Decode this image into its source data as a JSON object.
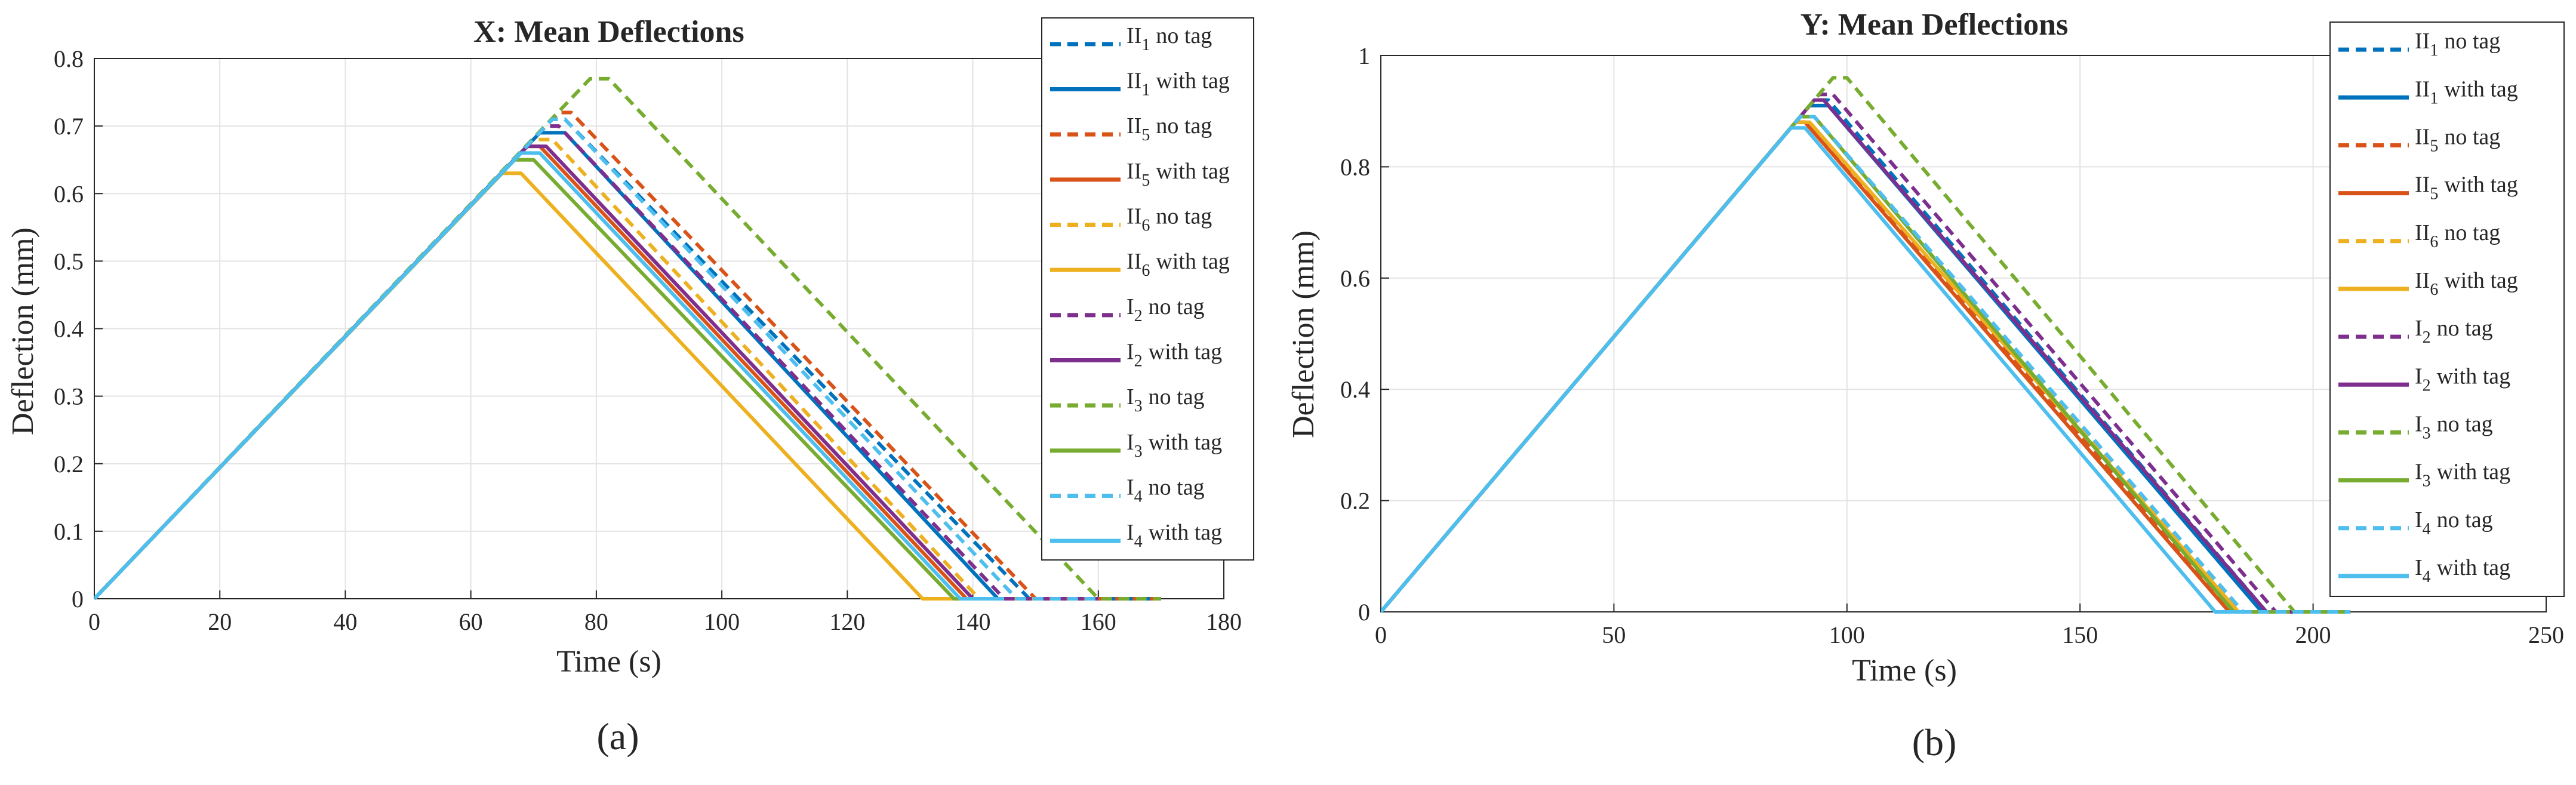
{
  "chart_data": [
    {
      "type": "line",
      "panel_label": "(a)",
      "title": "X: Mean Deflections",
      "xlabel": "Time (s)",
      "ylabel": "Deflection (mm)",
      "xlim": [
        0,
        180
      ],
      "ylim": [
        0,
        0.8
      ],
      "xticks": [
        "0",
        "20",
        "40",
        "60",
        "80",
        "100",
        "120",
        "140",
        "160",
        "180"
      ],
      "yticks": [
        "0",
        "0.1",
        "0.2",
        "0.3",
        "0.4",
        "0.5",
        "0.6",
        "0.7",
        "0.8"
      ],
      "grid": true,
      "legend_position": "top-right",
      "series": [
        {
          "name": "II1 no tag",
          "sym": "II",
          "sub": "1",
          "suffix": "no tag",
          "color": "#0072BD",
          "dashed": true,
          "x": [
            0,
            73,
            75,
            149,
            170
          ],
          "y": [
            0,
            0.71,
            0.71,
            0,
            0
          ]
        },
        {
          "name": "II1 with tag",
          "sym": "II",
          "sub": "1",
          "suffix": "with tag",
          "color": "#0072BD",
          "dashed": false,
          "x": [
            0,
            71,
            75,
            144,
            149
          ],
          "y": [
            0,
            0.69,
            0.69,
            0,
            0
          ]
        },
        {
          "name": "II5 no tag",
          "sym": "II",
          "sub": "5",
          "suffix": "no tag",
          "color": "#D95319",
          "dashed": true,
          "x": [
            0,
            74,
            76,
            150,
            170
          ],
          "y": [
            0,
            0.72,
            0.72,
            0,
            0
          ]
        },
        {
          "name": "II5 with tag",
          "sym": "II",
          "sub": "5",
          "suffix": "with tag",
          "color": "#D95319",
          "dashed": false,
          "x": [
            0,
            69,
            71,
            139,
            146
          ],
          "y": [
            0,
            0.67,
            0.67,
            0,
            0
          ]
        },
        {
          "name": "II6 no tag",
          "sym": "II",
          "sub": "6",
          "suffix": "no tag",
          "color": "#EDB120",
          "dashed": true,
          "x": [
            0,
            70,
            73,
            141,
            150
          ],
          "y": [
            0,
            0.68,
            0.68,
            0,
            0
          ]
        },
        {
          "name": "II6 with tag",
          "sym": "II",
          "sub": "6",
          "suffix": "with tag",
          "color": "#EDB120",
          "dashed": false,
          "x": [
            0,
            65,
            68,
            132,
            137
          ],
          "y": [
            0,
            0.63,
            0.63,
            0,
            0
          ]
        },
        {
          "name": "I2 no tag",
          "sym": "I",
          "sub": "2",
          "suffix": "no tag",
          "color": "#7E2F8E",
          "dashed": true,
          "x": [
            0,
            72,
            74,
            145,
            160
          ],
          "y": [
            0,
            0.7,
            0.7,
            0,
            0
          ]
        },
        {
          "name": "I2 with tag",
          "sym": "I",
          "sub": "2",
          "suffix": "with tag",
          "color": "#7E2F8E",
          "dashed": false,
          "x": [
            0,
            69,
            72,
            140,
            146
          ],
          "y": [
            0,
            0.67,
            0.67,
            0,
            0
          ]
        },
        {
          "name": "I3 no tag",
          "sym": "I",
          "sub": "3",
          "suffix": "no tag",
          "color": "#77AC30",
          "dashed": true,
          "x": [
            0,
            79,
            82,
            160,
            170
          ],
          "y": [
            0,
            0.77,
            0.77,
            0,
            0
          ]
        },
        {
          "name": "I3 with tag",
          "sym": "I",
          "sub": "3",
          "suffix": "with tag",
          "color": "#77AC30",
          "dashed": false,
          "x": [
            0,
            67,
            70,
            137,
            144
          ],
          "y": [
            0,
            0.65,
            0.65,
            0,
            0
          ]
        },
        {
          "name": "I4 no tag",
          "sym": "I",
          "sub": "4",
          "suffix": "no tag",
          "color": "#4DBEEE",
          "dashed": true,
          "x": [
            0,
            73,
            75,
            147,
            160
          ],
          "y": [
            0,
            0.71,
            0.71,
            0,
            0
          ]
        },
        {
          "name": "I4 with tag",
          "sym": "I",
          "sub": "4",
          "suffix": "with tag",
          "color": "#4DBEEE",
          "dashed": false,
          "x": [
            0,
            68,
            71,
            138,
            145
          ],
          "y": [
            0,
            0.66,
            0.66,
            0,
            0
          ]
        }
      ]
    },
    {
      "type": "line",
      "panel_label": "(b)",
      "title": "Y: Mean Deflections",
      "xlabel": "Time (s)",
      "ylabel": "Deflection (mm)",
      "xlim": [
        0,
        250
      ],
      "ylim": [
        0,
        1
      ],
      "xticks": [
        "0",
        "50",
        "100",
        "150",
        "200",
        "250"
      ],
      "yticks": [
        "0",
        "0.2",
        "0.4",
        "0.6",
        "0.8",
        "1"
      ],
      "grid": true,
      "legend_position": "top-right",
      "series": [
        {
          "name": "II1 no tag",
          "sym": "II",
          "sub": "1",
          "suffix": "no tag",
          "color": "#0072BD",
          "dashed": true,
          "x": [
            0,
            93,
            96,
            190,
            208
          ],
          "y": [
            0,
            0.92,
            0.92,
            0,
            0
          ]
        },
        {
          "name": "II1 with tag",
          "sym": "II",
          "sub": "1",
          "suffix": "with tag",
          "color": "#0072BD",
          "dashed": false,
          "x": [
            0,
            92,
            96,
            189,
            200
          ],
          "y": [
            0,
            0.91,
            0.91,
            0,
            0
          ]
        },
        {
          "name": "II5 no tag",
          "sym": "II",
          "sub": "5",
          "suffix": "no tag",
          "color": "#D95319",
          "dashed": true,
          "x": [
            0,
            89,
            92,
            183,
            208
          ],
          "y": [
            0,
            0.88,
            0.88,
            0,
            0
          ]
        },
        {
          "name": "II5 with tag",
          "sym": "II",
          "sub": "5",
          "suffix": "with tag",
          "color": "#D95319",
          "dashed": false,
          "x": [
            0,
            89,
            91,
            182,
            190
          ],
          "y": [
            0,
            0.88,
            0.88,
            0,
            0
          ]
        },
        {
          "name": "II6 no tag",
          "sym": "II",
          "sub": "6",
          "suffix": "no tag",
          "color": "#EDB120",
          "dashed": true,
          "x": [
            0,
            90,
            93,
            184,
            208
          ],
          "y": [
            0,
            0.89,
            0.89,
            0,
            0
          ]
        },
        {
          "name": "II6 with tag",
          "sym": "II",
          "sub": "6",
          "suffix": "with tag",
          "color": "#EDB120",
          "dashed": false,
          "x": [
            0,
            89,
            92,
            184,
            195
          ],
          "y": [
            0,
            0.88,
            0.88,
            0,
            0
          ]
        },
        {
          "name": "I2 no tag",
          "sym": "I",
          "sub": "2",
          "suffix": "no tag",
          "color": "#7E2F8E",
          "dashed": true,
          "x": [
            0,
            94,
            97,
            192,
            208
          ],
          "y": [
            0,
            0.93,
            0.93,
            0,
            0
          ]
        },
        {
          "name": "I2 with tag",
          "sym": "I",
          "sub": "2",
          "suffix": "with tag",
          "color": "#7E2F8E",
          "dashed": false,
          "x": [
            0,
            93,
            95,
            190,
            200
          ],
          "y": [
            0,
            0.92,
            0.92,
            0,
            0
          ]
        },
        {
          "name": "I3 no tag",
          "sym": "I",
          "sub": "3",
          "suffix": "no tag",
          "color": "#77AC30",
          "dashed": true,
          "x": [
            0,
            97,
            100,
            196,
            208
          ],
          "y": [
            0,
            0.96,
            0.96,
            0,
            0
          ]
        },
        {
          "name": "I3 with tag",
          "sym": "I",
          "sub": "3",
          "suffix": "with tag",
          "color": "#77AC30",
          "dashed": false,
          "x": [
            0,
            90,
            93,
            183,
            195
          ],
          "y": [
            0,
            0.89,
            0.89,
            0,
            0
          ]
        },
        {
          "name": "I4 no tag",
          "sym": "I",
          "sub": "4",
          "suffix": "no tag",
          "color": "#4DBEEE",
          "dashed": true,
          "x": [
            0,
            90,
            93,
            185,
            208
          ],
          "y": [
            0,
            0.89,
            0.89,
            0,
            0
          ]
        },
        {
          "name": "I4 with tag",
          "sym": "I",
          "sub": "4",
          "suffix": "with tag",
          "color": "#4DBEEE",
          "dashed": false,
          "x": [
            0,
            88,
            91,
            179,
            185
          ],
          "y": [
            0,
            0.87,
            0.87,
            0,
            0
          ]
        }
      ]
    }
  ]
}
